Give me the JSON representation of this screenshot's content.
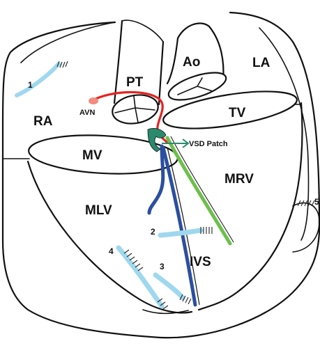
{
  "labels": {
    "pt": "PT",
    "ao": "Ao",
    "la": "LA",
    "ra": "RA",
    "tv": "TV",
    "mv": "MV",
    "mrv": "MRV",
    "mlv": "MLV",
    "ivs": "IVS",
    "avn": "AVN",
    "vsd_patch": "VSD Patch"
  },
  "leads": {
    "lead1": "1",
    "lead2": "2",
    "lead3": "3",
    "lead4": "4",
    "lead5": "5"
  },
  "colors": {
    "conduction_red": "#e52420",
    "patch_green": "#6cc04a",
    "patch_teal": "#2a8a6e",
    "septal_blue": "#2b4fa0",
    "lead_blue": "#9fd8ee",
    "avn_node": "#f28b80",
    "outline": "#111111"
  }
}
